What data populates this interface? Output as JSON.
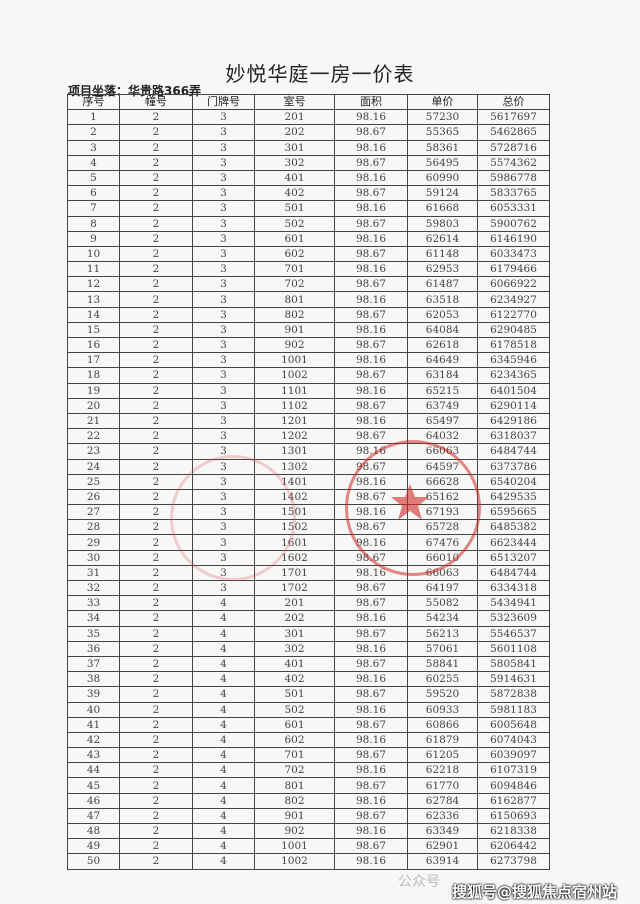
{
  "title": "妙悦华庭一房一价表",
  "location": "项目坐落：华贵路366弄",
  "headers": [
    "序号",
    "幢号",
    "门牌号",
    "室号",
    "面积",
    "单价",
    "总价"
  ],
  "rows": [
    [
      "1",
      "2",
      "3",
      "201",
      "98.16",
      "57230",
      "5617697"
    ],
    [
      "2",
      "2",
      "3",
      "202",
      "98.67",
      "55365",
      "5462865"
    ],
    [
      "3",
      "2",
      "3",
      "301",
      "98.16",
      "58361",
      "5728716"
    ],
    [
      "4",
      "2",
      "3",
      "302",
      "98.67",
      "56495",
      "5574362"
    ],
    [
      "5",
      "2",
      "3",
      "401",
      "98.16",
      "60990",
      "5986778"
    ],
    [
      "6",
      "2",
      "3",
      "402",
      "98.67",
      "59124",
      "5833765"
    ],
    [
      "7",
      "2",
      "3",
      "501",
      "98.16",
      "61668",
      "6053331"
    ],
    [
      "8",
      "2",
      "3",
      "502",
      "98.67",
      "59803",
      "5900762"
    ],
    [
      "9",
      "2",
      "3",
      "601",
      "98.16",
      "62614",
      "6146190"
    ],
    [
      "10",
      "2",
      "3",
      "602",
      "98.67",
      "61148",
      "6033473"
    ],
    [
      "11",
      "2",
      "3",
      "701",
      "98.16",
      "62953",
      "6179466"
    ],
    [
      "12",
      "2",
      "3",
      "702",
      "98.67",
      "61487",
      "6066922"
    ],
    [
      "13",
      "2",
      "3",
      "801",
      "98.16",
      "63518",
      "6234927"
    ],
    [
      "14",
      "2",
      "3",
      "802",
      "98.67",
      "62053",
      "6122770"
    ],
    [
      "15",
      "2",
      "3",
      "901",
      "98.16",
      "64084",
      "6290485"
    ],
    [
      "16",
      "2",
      "3",
      "902",
      "98.67",
      "62618",
      "6178518"
    ],
    [
      "17",
      "2",
      "3",
      "1001",
      "98.16",
      "64649",
      "6345946"
    ],
    [
      "18",
      "2",
      "3",
      "1002",
      "98.67",
      "63184",
      "6234365"
    ],
    [
      "19",
      "2",
      "3",
      "1101",
      "98.16",
      "65215",
      "6401504"
    ],
    [
      "20",
      "2",
      "3",
      "1102",
      "98.67",
      "63749",
      "6290114"
    ],
    [
      "21",
      "2",
      "3",
      "1201",
      "98.16",
      "65497",
      "6429186"
    ],
    [
      "22",
      "2",
      "3",
      "1202",
      "98.67",
      "64032",
      "6318037"
    ],
    [
      "23",
      "2",
      "3",
      "1301",
      "98.16",
      "66063",
      "6484744"
    ],
    [
      "24",
      "2",
      "3",
      "1302",
      "98.67",
      "64597",
      "6373786"
    ],
    [
      "25",
      "2",
      "3",
      "1401",
      "98.16",
      "66628",
      "6540204"
    ],
    [
      "26",
      "2",
      "3",
      "1402",
      "98.67",
      "65162",
      "6429535"
    ],
    [
      "27",
      "2",
      "3",
      "1501",
      "98.16",
      "67193",
      "6595665"
    ],
    [
      "28",
      "2",
      "3",
      "1502",
      "98.67",
      "65728",
      "6485382"
    ],
    [
      "29",
      "2",
      "3",
      "1601",
      "98.16",
      "67476",
      "6623444"
    ],
    [
      "30",
      "2",
      "3",
      "1602",
      "98.67",
      "66010",
      "6513207"
    ],
    [
      "31",
      "2",
      "3",
      "1701",
      "98.16",
      "66063",
      "6484744"
    ],
    [
      "32",
      "2",
      "3",
      "1702",
      "98.67",
      "64197",
      "6334318"
    ],
    [
      "33",
      "2",
      "4",
      "201",
      "98.67",
      "55082",
      "5434941"
    ],
    [
      "34",
      "2",
      "4",
      "202",
      "98.16",
      "54234",
      "5323609"
    ],
    [
      "35",
      "2",
      "4",
      "301",
      "98.67",
      "56213",
      "5546537"
    ],
    [
      "36",
      "2",
      "4",
      "302",
      "98.16",
      "57061",
      "5601108"
    ],
    [
      "37",
      "2",
      "4",
      "401",
      "98.67",
      "58841",
      "5805841"
    ],
    [
      "38",
      "2",
      "4",
      "402",
      "98.16",
      "60255",
      "5914631"
    ],
    [
      "39",
      "2",
      "4",
      "501",
      "98.67",
      "59520",
      "5872838"
    ],
    [
      "40",
      "2",
      "4",
      "502",
      "98.16",
      "60933",
      "5981183"
    ],
    [
      "41",
      "2",
      "4",
      "601",
      "98.67",
      "60866",
      "6005648"
    ],
    [
      "42",
      "2",
      "4",
      "602",
      "98.16",
      "61879",
      "6074043"
    ],
    [
      "43",
      "2",
      "4",
      "701",
      "98.67",
      "61205",
      "6039097"
    ],
    [
      "44",
      "2",
      "4",
      "702",
      "98.16",
      "62218",
      "6107319"
    ],
    [
      "45",
      "2",
      "4",
      "801",
      "98.67",
      "61770",
      "6094846"
    ],
    [
      "46",
      "2",
      "4",
      "802",
      "98.16",
      "62784",
      "6162877"
    ],
    [
      "47",
      "2",
      "4",
      "901",
      "98.67",
      "62336",
      "6150693"
    ],
    [
      "48",
      "2",
      "4",
      "902",
      "98.16",
      "63349",
      "6218338"
    ],
    [
      "49",
      "2",
      "4",
      "1001",
      "98.67",
      "62901",
      "6206442"
    ],
    [
      "50",
      "2",
      "4",
      "1002",
      "98.16",
      "63914",
      "6273798"
    ]
  ],
  "watermark": {
    "faint": "公众号",
    "overlay": "搜狐号@搜狐焦点宿州站"
  },
  "colors": {
    "stamp": "#d22828"
  }
}
